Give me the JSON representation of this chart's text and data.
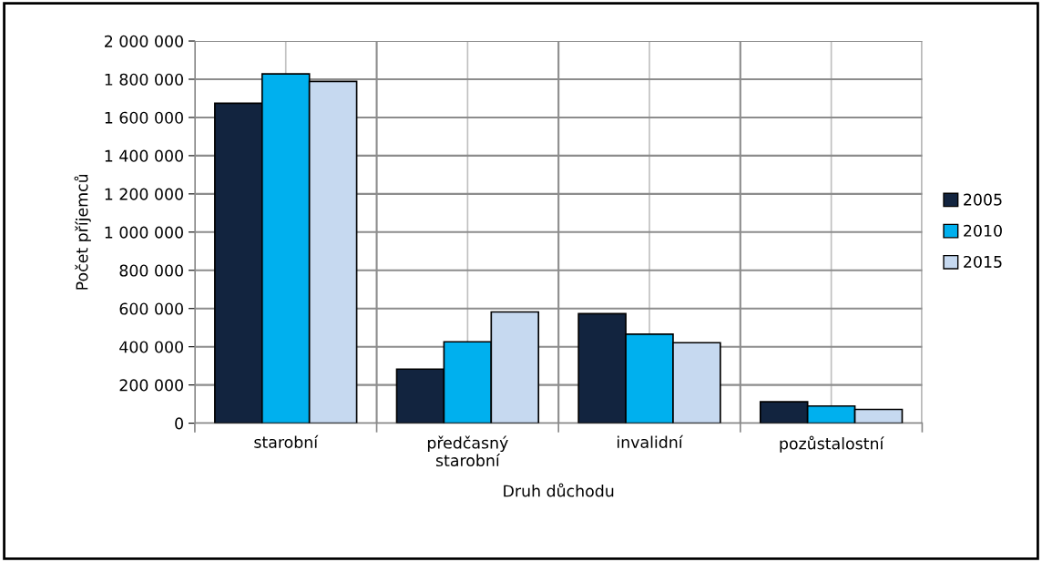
{
  "chart_data": {
    "type": "bar",
    "xlabel": "Druh důchodu",
    "ylabel": "Počet příjemců",
    "categories": [
      "starobní",
      "předčasný\nstarobní",
      "invalidní",
      "pozůstalostní"
    ],
    "series": [
      {
        "name": "2005",
        "color": "#12243f",
        "values": [
          1674000,
          283000,
          573000,
          112000
        ]
      },
      {
        "name": "2010",
        "color": "#00b0ee",
        "values": [
          1828000,
          426000,
          466000,
          90000
        ]
      },
      {
        "name": "2015",
        "color": "#c6d9f0",
        "values": [
          1789000,
          582000,
          421000,
          72000
        ]
      }
    ],
    "ylim": [
      0,
      2000000
    ],
    "yticks": [
      {
        "value": 0,
        "label": "0"
      },
      {
        "value": 200000,
        "label": "200 000"
      },
      {
        "value": 400000,
        "label": "400 000"
      },
      {
        "value": 600000,
        "label": "600 000"
      },
      {
        "value": 800000,
        "label": "800 000"
      },
      {
        "value": 1000000,
        "label": "1 000 000"
      },
      {
        "value": 1200000,
        "label": "1 200 000"
      },
      {
        "value": 1400000,
        "label": "1 400 000"
      },
      {
        "value": 1600000,
        "label": "1 600 000"
      },
      {
        "value": 1800000,
        "label": "1 800 000"
      },
      {
        "value": 2000000,
        "label": "2 000 000"
      }
    ],
    "grid": true,
    "legend": "right"
  }
}
